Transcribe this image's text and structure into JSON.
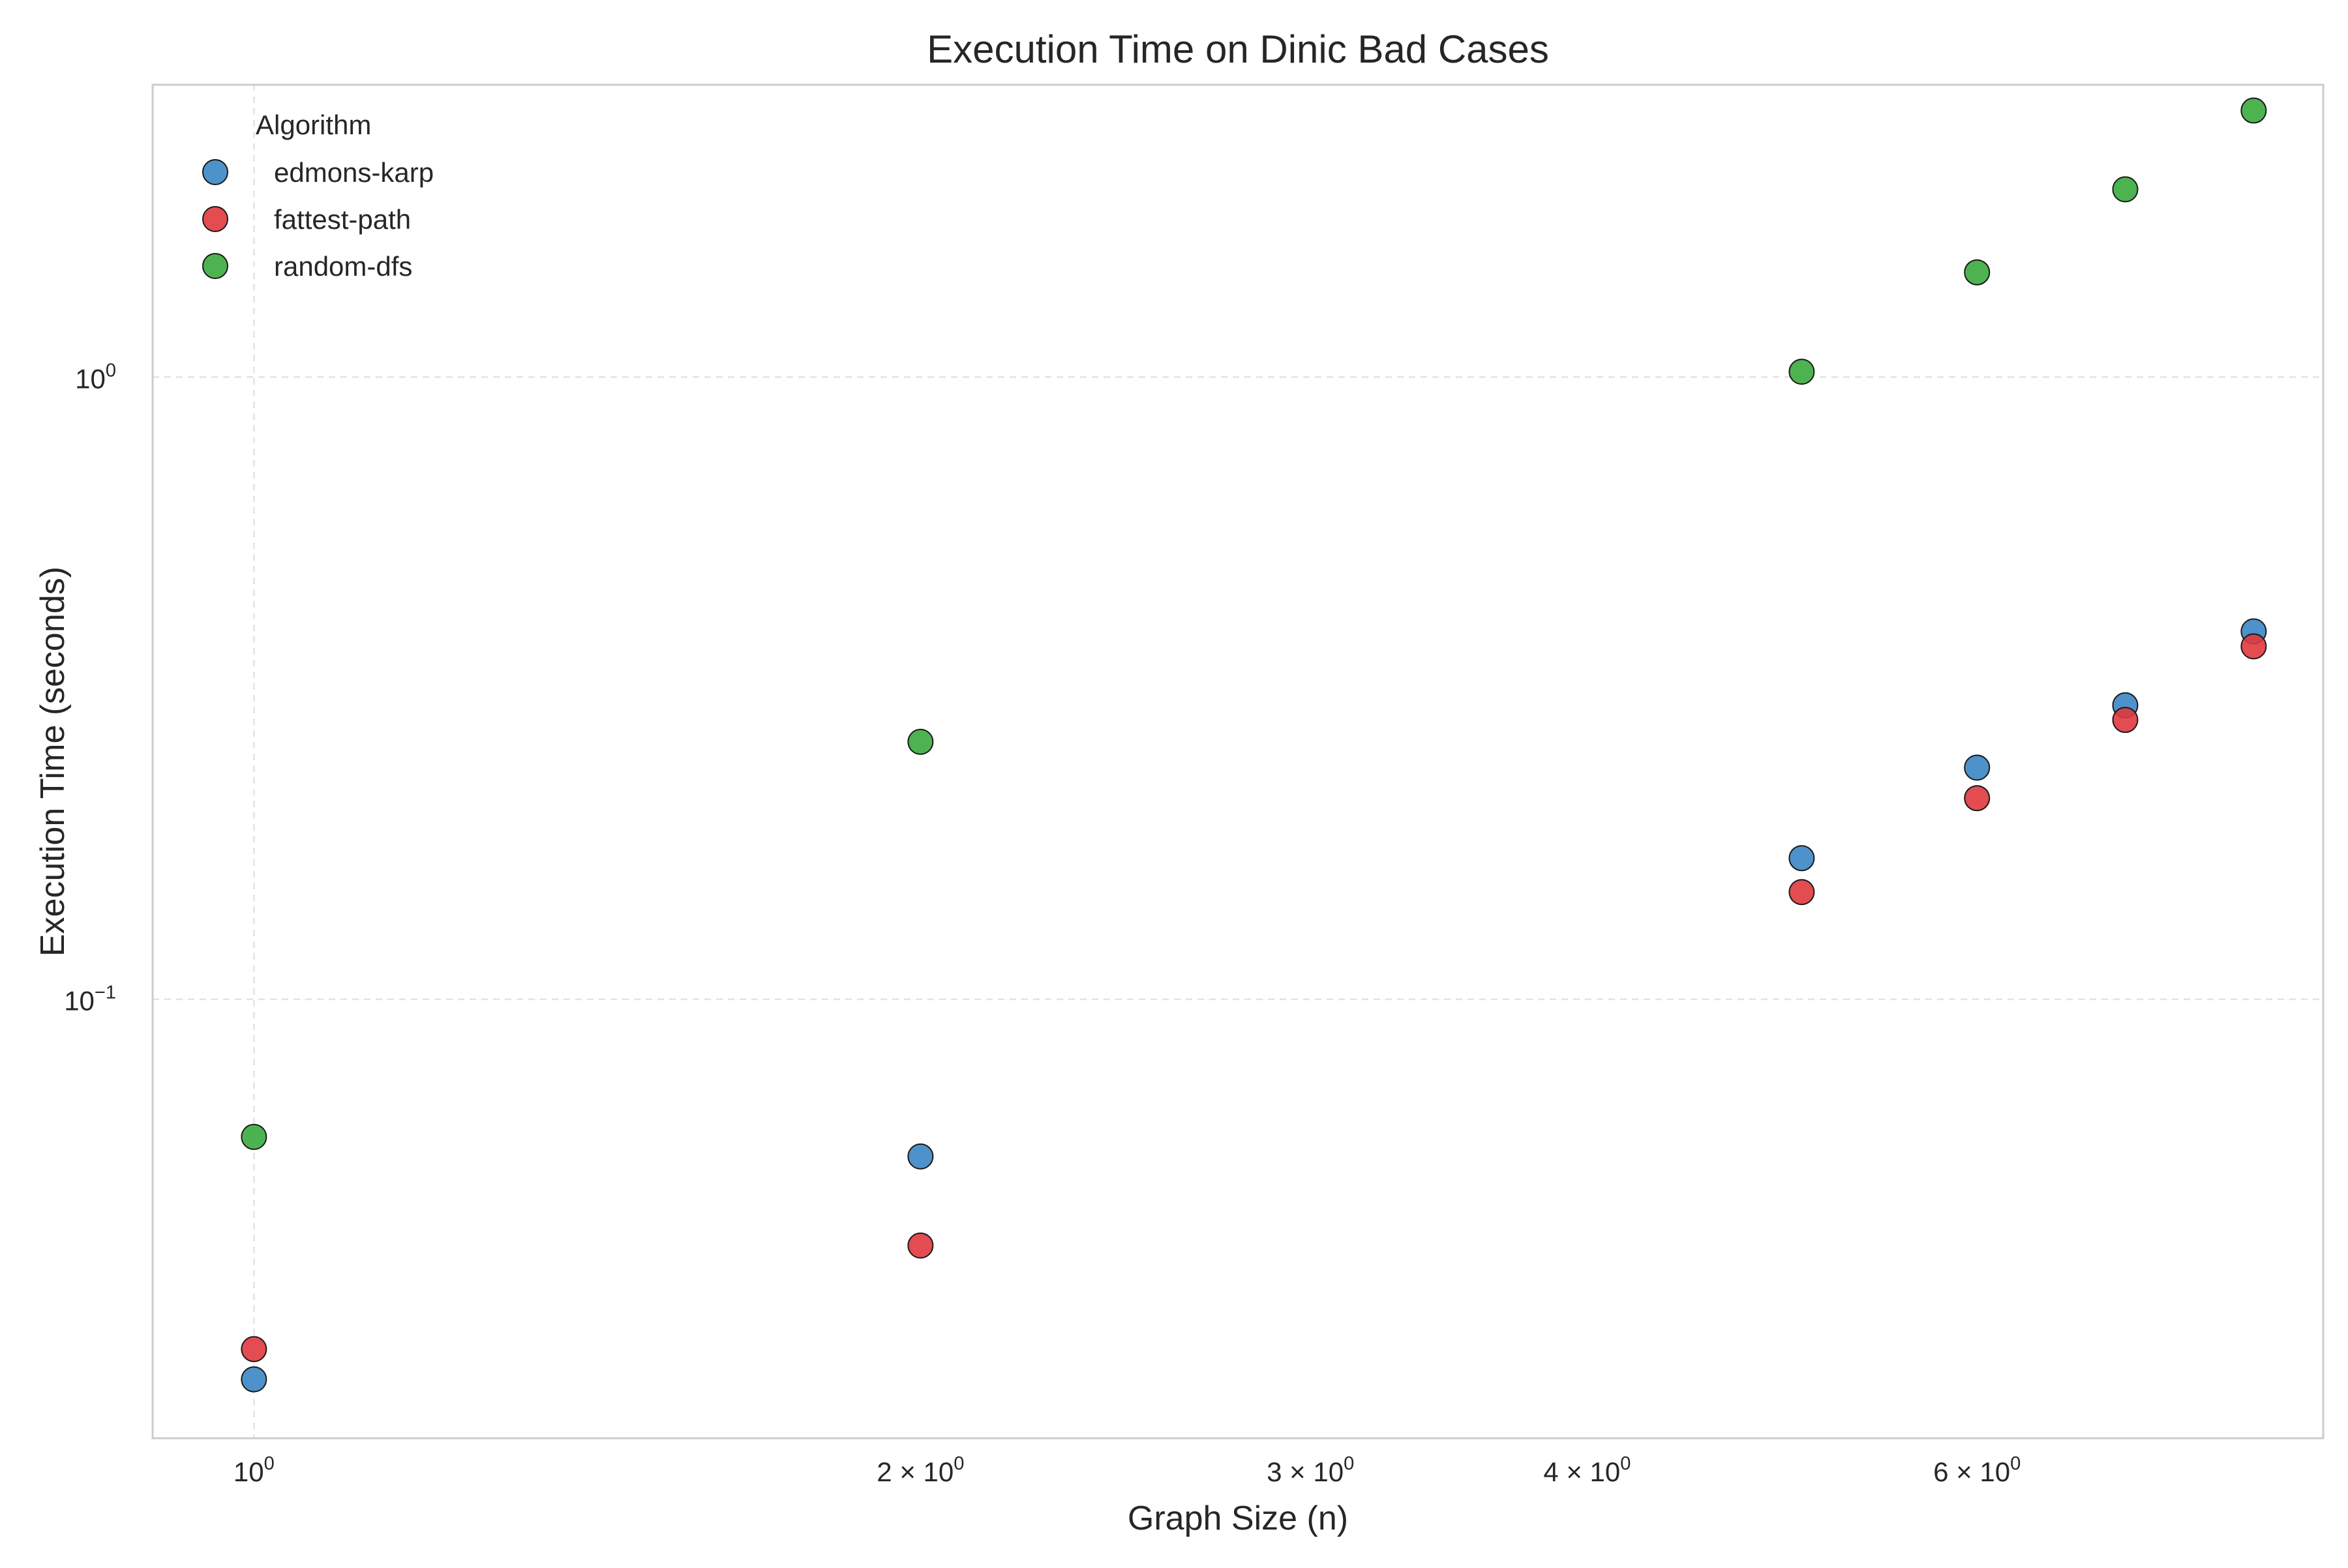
{
  "chart_data": {
    "type": "scatter",
    "title": "Execution Time on Dinic Bad Cases",
    "xlabel": "Graph Size (n)",
    "ylabel": "Execution Time (seconds)",
    "xscale": "log",
    "yscale": "log",
    "xlim": [
      0.9,
      8.6
    ],
    "ylim": [
      0.0197,
      2.95
    ],
    "grid": true,
    "legend_placement": "top-left",
    "legend_title": "Algorithm",
    "x_ticks": [
      {
        "value": 1,
        "label_base": "10",
        "label_exp": "0",
        "label_prefix": ""
      },
      {
        "value": 2,
        "label_base": "10",
        "label_exp": "0",
        "label_prefix": "2 × "
      },
      {
        "value": 3,
        "label_base": "10",
        "label_exp": "0",
        "label_prefix": "3 × "
      },
      {
        "value": 4,
        "label_base": "10",
        "label_exp": "0",
        "label_prefix": "4 × "
      },
      {
        "value": 6,
        "label_base": "10",
        "label_exp": "0",
        "label_prefix": "6 × "
      }
    ],
    "y_ticks": [
      {
        "value": 0.1,
        "label_base": "10",
        "label_exp": "−1"
      },
      {
        "value": 1,
        "label_base": "10",
        "label_exp": "0"
      }
    ],
    "series": [
      {
        "name": "edmons-karp",
        "color": "#3a86c4",
        "x": [
          1,
          2,
          5,
          6,
          7,
          8
        ],
        "y": [
          0.0245,
          0.0559,
          0.1686,
          0.2357,
          0.2968,
          0.3902
        ]
      },
      {
        "name": "fattest-path",
        "color": "#e0393e",
        "x": [
          1,
          2,
          5,
          6,
          7,
          8
        ],
        "y": [
          0.0274,
          0.0402,
          0.1487,
          0.2105,
          0.2812,
          0.3692
        ]
      },
      {
        "name": "random-dfs",
        "color": "#3aab3e",
        "x": [
          1,
          2,
          5,
          6,
          7,
          8
        ],
        "y": [
          0.0601,
          0.2593,
          1.0201,
          1.4735,
          2.0034,
          2.6815
        ]
      }
    ]
  }
}
